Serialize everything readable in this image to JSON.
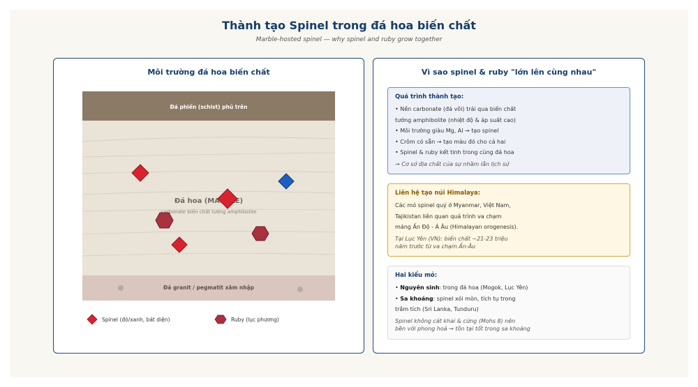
{
  "title": "Thành tạo Spinel trong đá hoa biến chất",
  "subtitle": "Marble-hosted spinel — why spinel and ruby grow together",
  "left": {
    "heading": "Môi trường đá hoa biến chất",
    "diagram": {
      "top_layer": "Đá phiến (schist) phủ trên",
      "marble_label": "Đá hoa (MARBLE)",
      "marble_sub": "carbonate biến chất tướng amphibolite",
      "bottom_layer": "Đá granit / pegmatit xâm nhập"
    },
    "legend": {
      "spinel": "Spinel (đỏ/xanh, bát diện)",
      "ruby": "Ruby (lục phương)"
    }
  },
  "right": {
    "heading": "Vì sao spinel & ruby \"lớn lên cùng nhau\"",
    "card1": {
      "title": "Quá trình thành tạo:",
      "lines": [
        "• Nền carbonate (đá vôi) trải qua biến chất",
        "tướng amphibolite (nhiệt độ & áp suất cao)",
        "• Môi trường giàu Mg, Al → tạo spinel",
        "• Crôm có sẵn → tạo màu đỏ cho cả hai",
        "• Spinel & ruby kết tinh trong cùng đá hoa"
      ],
      "note": "→ Cơ sở địa chất của sự nhầm lẫn lịch sử"
    },
    "card2": {
      "title": "Liên hệ tạo núi Himalaya:",
      "lines": [
        "Các mỏ spinel quý ở Myanmar, Việt Nam,",
        "Tajikistan liên quan quá trình va chạm",
        "mảng Ấn Độ - Á Âu (Himalayan orogenesis)."
      ],
      "note1": "Tại Lục Yên (VN): biến chất ~21-23 triệu",
      "note2": "năm trước từ va chạm Ấn-Âu"
    },
    "card3": {
      "title": "Hai kiểu mỏ:",
      "primary_bold": "Nguyên sinh",
      "primary_text": ": trong đá hoa (Mogok, Lục Yên)",
      "placer_bold": "Sa khoáng",
      "placer_text": ": spinel xói mòn, tích tụ trong",
      "placer_text2": "trầm tích (Sri Lanka, Tunduru)",
      "note1": "Spinel không cát khai & cứng (Mohs 8) nên",
      "note2": "bền với phong hoá → tồn tại tốt trong sa khoáng"
    }
  },
  "colors": {
    "spinel_red": "#d8232f",
    "spinel_blue": "#1f5fbf",
    "ruby": "#a8323e",
    "schist": "#8b7a66",
    "marble": "#e9e3d8",
    "granite": "#d9c6bf",
    "heading": "#163d6a"
  }
}
